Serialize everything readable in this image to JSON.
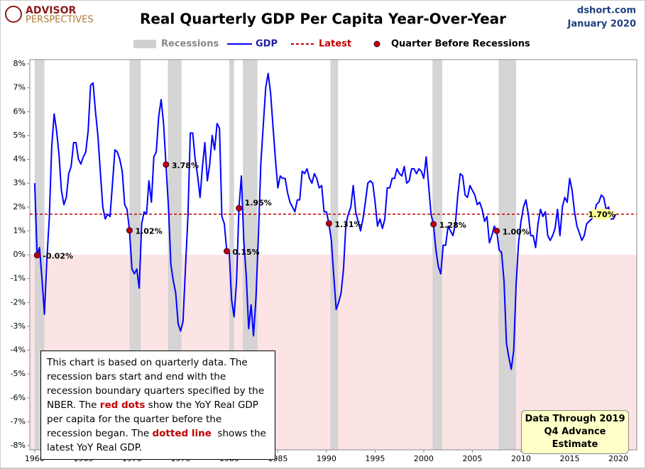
{
  "chart_data": {
    "type": "line",
    "title": "Real Quarterly GDP Per Capita Year-Over-Year",
    "brand": [
      "ADVISOR",
      "PERSPECTIVES"
    ],
    "source": "dshort.com",
    "date": "January 2020",
    "xlim": [
      1959.5,
      2021.9
    ],
    "xticks": [
      1960,
      1965,
      1970,
      1975,
      1980,
      1985,
      1990,
      1995,
      2000,
      2005,
      2010,
      2015,
      2020
    ],
    "ylim": [
      -8,
      8
    ],
    "yticks": [
      {
        "value": -8,
        "label": "-8%"
      },
      {
        "value": -7,
        "label": "-7%"
      },
      {
        "value": -6,
        "label": "-6%"
      },
      {
        "value": -5,
        "label": "-5%"
      },
      {
        "value": -4,
        "label": "-4%"
      },
      {
        "value": -3,
        "label": "-3%"
      },
      {
        "value": -2,
        "label": "-2%"
      },
      {
        "value": -1,
        "label": "-1%"
      },
      {
        "value": 0,
        "label": "0%"
      },
      {
        "value": 1,
        "label": "1%"
      },
      {
        "value": 2,
        "label": "2%"
      },
      {
        "value": 3,
        "label": "3%"
      },
      {
        "value": 4,
        "label": "4%"
      },
      {
        "value": 5,
        "label": "5%"
      },
      {
        "value": 6,
        "label": "6%"
      },
      {
        "value": 7,
        "label": "7%"
      },
      {
        "value": 8,
        "label": "8%"
      }
    ],
    "recessions": {
      "name": "Recessions",
      "color": "#d0d0d0",
      "spans": [
        [
          1960.0,
          1961.0
        ],
        [
          1969.75,
          1970.9
        ],
        [
          1973.7,
          1975.1
        ],
        [
          1980.0,
          1980.5
        ],
        [
          1981.4,
          1982.9
        ],
        [
          1990.4,
          1991.2
        ],
        [
          2000.9,
          2001.9
        ],
        [
          2007.7,
          2009.5
        ]
      ]
    },
    "latest": {
      "name": "Latest",
      "value": 1.7,
      "value_label": "1.70%",
      "color": "#c00000"
    },
    "series": [
      {
        "name": "GDP",
        "color": "#0000ff",
        "x": [
          1960,
          1960.25,
          1960.5,
          1960.75,
          1961,
          1961.25,
          1961.5,
          1961.75,
          1962,
          1962.25,
          1962.5,
          1962.75,
          1963,
          1963.25,
          1963.5,
          1963.75,
          1964,
          1964.25,
          1964.5,
          1964.75,
          1965,
          1965.25,
          1965.5,
          1965.75,
          1966,
          1966.25,
          1966.5,
          1966.75,
          1967,
          1967.25,
          1967.5,
          1967.75,
          1968,
          1968.25,
          1968.5,
          1968.75,
          1969,
          1969.25,
          1969.5,
          1969.75,
          1970,
          1970.25,
          1970.5,
          1970.75,
          1971,
          1971.25,
          1971.5,
          1971.75,
          1972,
          1972.25,
          1972.5,
          1972.75,
          1973,
          1973.25,
          1973.5,
          1973.75,
          1974,
          1974.25,
          1974.5,
          1974.75,
          1975,
          1975.25,
          1975.5,
          1975.75,
          1976,
          1976.25,
          1976.5,
          1976.75,
          1977,
          1977.25,
          1977.5,
          1977.75,
          1978,
          1978.25,
          1978.5,
          1978.75,
          1979,
          1979.25,
          1979.5,
          1979.75,
          1980,
          1980.25,
          1980.5,
          1980.75,
          1981,
          1981.25,
          1981.5,
          1981.75,
          1982,
          1982.25,
          1982.5,
          1982.75,
          1983,
          1983.25,
          1983.5,
          1983.75,
          1984,
          1984.25,
          1984.5,
          1984.75,
          1985,
          1985.25,
          1985.5,
          1985.75,
          1986,
          1986.25,
          1986.5,
          1986.75,
          1987,
          1987.25,
          1987.5,
          1987.75,
          1988,
          1988.25,
          1988.5,
          1988.75,
          1989,
          1989.25,
          1989.5,
          1989.75,
          1990,
          1990.25,
          1990.5,
          1990.75,
          1991,
          1991.25,
          1991.5,
          1991.75,
          1992,
          1992.25,
          1992.5,
          1992.75,
          1993,
          1993.25,
          1993.5,
          1993.75,
          1994,
          1994.25,
          1994.5,
          1994.75,
          1995,
          1995.25,
          1995.5,
          1995.75,
          1996,
          1996.25,
          1996.5,
          1996.75,
          1997,
          1997.25,
          1997.5,
          1997.75,
          1998,
          1998.25,
          1998.5,
          1998.75,
          1999,
          1999.25,
          1999.5,
          1999.75,
          2000,
          2000.25,
          2000.5,
          2000.75,
          2001,
          2001.25,
          2001.5,
          2001.75,
          2002,
          2002.25,
          2002.5,
          2002.75,
          2003,
          2003.25,
          2003.5,
          2003.75,
          2004,
          2004.25,
          2004.5,
          2004.75,
          2005,
          2005.25,
          2005.5,
          2005.75,
          2006,
          2006.25,
          2006.5,
          2006.75,
          2007,
          2007.25,
          2007.5,
          2007.75,
          2008,
          2008.25,
          2008.5,
          2008.75,
          2009,
          2009.25,
          2009.5,
          2009.75,
          2010,
          2010.25,
          2010.5,
          2010.75,
          2011,
          2011.25,
          2011.5,
          2011.75,
          2012,
          2012.25,
          2012.5,
          2012.75,
          2013,
          2013.25,
          2013.5,
          2013.75,
          2014,
          2014.25,
          2014.5,
          2014.75,
          2015,
          2015.25,
          2015.5,
          2015.75,
          2016,
          2016.25,
          2016.5,
          2016.75,
          2017,
          2017.25,
          2017.5,
          2017.75,
          2018,
          2018.25,
          2018.5,
          2018.75,
          2019,
          2019.25,
          2019.5,
          2019.75
        ],
        "values": [
          3.0,
          -0.02,
          0.3,
          -1.0,
          -2.5,
          -0.2,
          1.5,
          4.5,
          5.9,
          5.2,
          4.2,
          2.7,
          2.1,
          2.4,
          3.4,
          3.7,
          4.7,
          4.7,
          4.0,
          3.8,
          4.1,
          4.3,
          5.2,
          7.1,
          7.2,
          6.0,
          5.0,
          3.5,
          2.0,
          1.5,
          1.7,
          1.6,
          3.0,
          4.4,
          4.3,
          4.0,
          3.5,
          2.1,
          1.9,
          1.02,
          -0.6,
          -0.8,
          -0.6,
          -1.4,
          1.3,
          1.8,
          1.7,
          3.1,
          2.2,
          4.1,
          4.3,
          5.8,
          6.5,
          5.5,
          3.78,
          2.0,
          -0.4,
          -1.1,
          -1.6,
          -2.9,
          -3.2,
          -2.8,
          -0.6,
          1.6,
          5.1,
          5.1,
          4.0,
          3.3,
          2.4,
          3.7,
          4.7,
          3.1,
          3.8,
          5.0,
          4.4,
          5.5,
          5.3,
          1.6,
          1.3,
          0.15,
          0.1,
          -1.9,
          -2.6,
          -1.1,
          1.95,
          3.3,
          0.6,
          -0.9,
          -3.1,
          -2.1,
          -3.4,
          -1.8,
          0.8,
          3.8,
          5.4,
          7.0,
          7.6,
          6.8,
          5.4,
          4.0,
          2.8,
          3.3,
          3.2,
          3.2,
          2.6,
          2.2,
          2.0,
          1.8,
          2.3,
          2.3,
          3.5,
          3.4,
          3.6,
          3.2,
          3.0,
          3.4,
          3.2,
          2.8,
          2.9,
          1.8,
          1.8,
          1.31,
          0.6,
          -0.9,
          -2.3,
          -2.0,
          -1.6,
          -0.6,
          1.3,
          1.7,
          2.0,
          2.9,
          1.8,
          1.4,
          1.0,
          1.5,
          2.2,
          3.0,
          3.1,
          3.0,
          2.2,
          1.2,
          1.5,
          1.1,
          1.5,
          2.8,
          2.8,
          3.2,
          3.2,
          3.6,
          3.4,
          3.3,
          3.7,
          3.0,
          3.1,
          3.6,
          3.6,
          3.4,
          3.6,
          3.5,
          3.2,
          4.1,
          2.9,
          1.7,
          1.28,
          0.2,
          -0.5,
          -0.8,
          0.4,
          0.4,
          1.2,
          1.0,
          0.8,
          1.3,
          2.5,
          3.4,
          3.3,
          2.5,
          2.4,
          2.9,
          2.7,
          2.5,
          2.1,
          2.2,
          1.9,
          1.4,
          1.6,
          0.5,
          0.8,
          1.2,
          1.0,
          0.2,
          0.1,
          -1.1,
          -3.7,
          -4.3,
          -4.8,
          -4.0,
          -1.2,
          0.5,
          1.4,
          2.0,
          2.3,
          1.7,
          0.8,
          0.8,
          0.3,
          1.3,
          1.9,
          1.6,
          1.8,
          0.8,
          0.6,
          0.8,
          1.1,
          1.9,
          0.8,
          2.0,
          2.4,
          2.2,
          3.2,
          2.7,
          1.8,
          1.2,
          0.9,
          0.6,
          0.8,
          1.3,
          1.4,
          1.5,
          1.6,
          2.1,
          2.2,
          2.5,
          2.4,
          1.9,
          2.0,
          1.5,
          1.5,
          1.7
        ]
      },
      {
        "name": "Quarter Before Recessions",
        "color": "#c00000",
        "x": [
          1960.25,
          1969.75,
          1973.5,
          1979.75,
          1981.0,
          1990.25,
          2001.0,
          2007.5
        ],
        "values": [
          -0.02,
          1.02,
          3.78,
          0.15,
          1.95,
          1.31,
          1.28,
          1.0
        ],
        "value_labels": [
          "-0.02%",
          "1.02%",
          "3.78%",
          "0.15%",
          "1.95%",
          "1.31%",
          "1.28%",
          "1.00%"
        ]
      }
    ],
    "note": [
      {
        "text": "This chart is based on quarterly data. The recession bars start and end with the recession boundary quarters specified by the  NBER. The "
      },
      {
        "text": "red dots",
        "bold": true,
        "color": "#c00000"
      },
      {
        "text": " show the YoY Real GDP per capita for the quarter before the recession began. The "
      },
      {
        "text": "dotted line",
        "bold": true,
        "color": "#c00000"
      },
      {
        "text": "  shows the latest YoY Real GDP."
      }
    ],
    "data_through": [
      "Data Through 2019",
      "Q4 Advance Estimate"
    ]
  }
}
